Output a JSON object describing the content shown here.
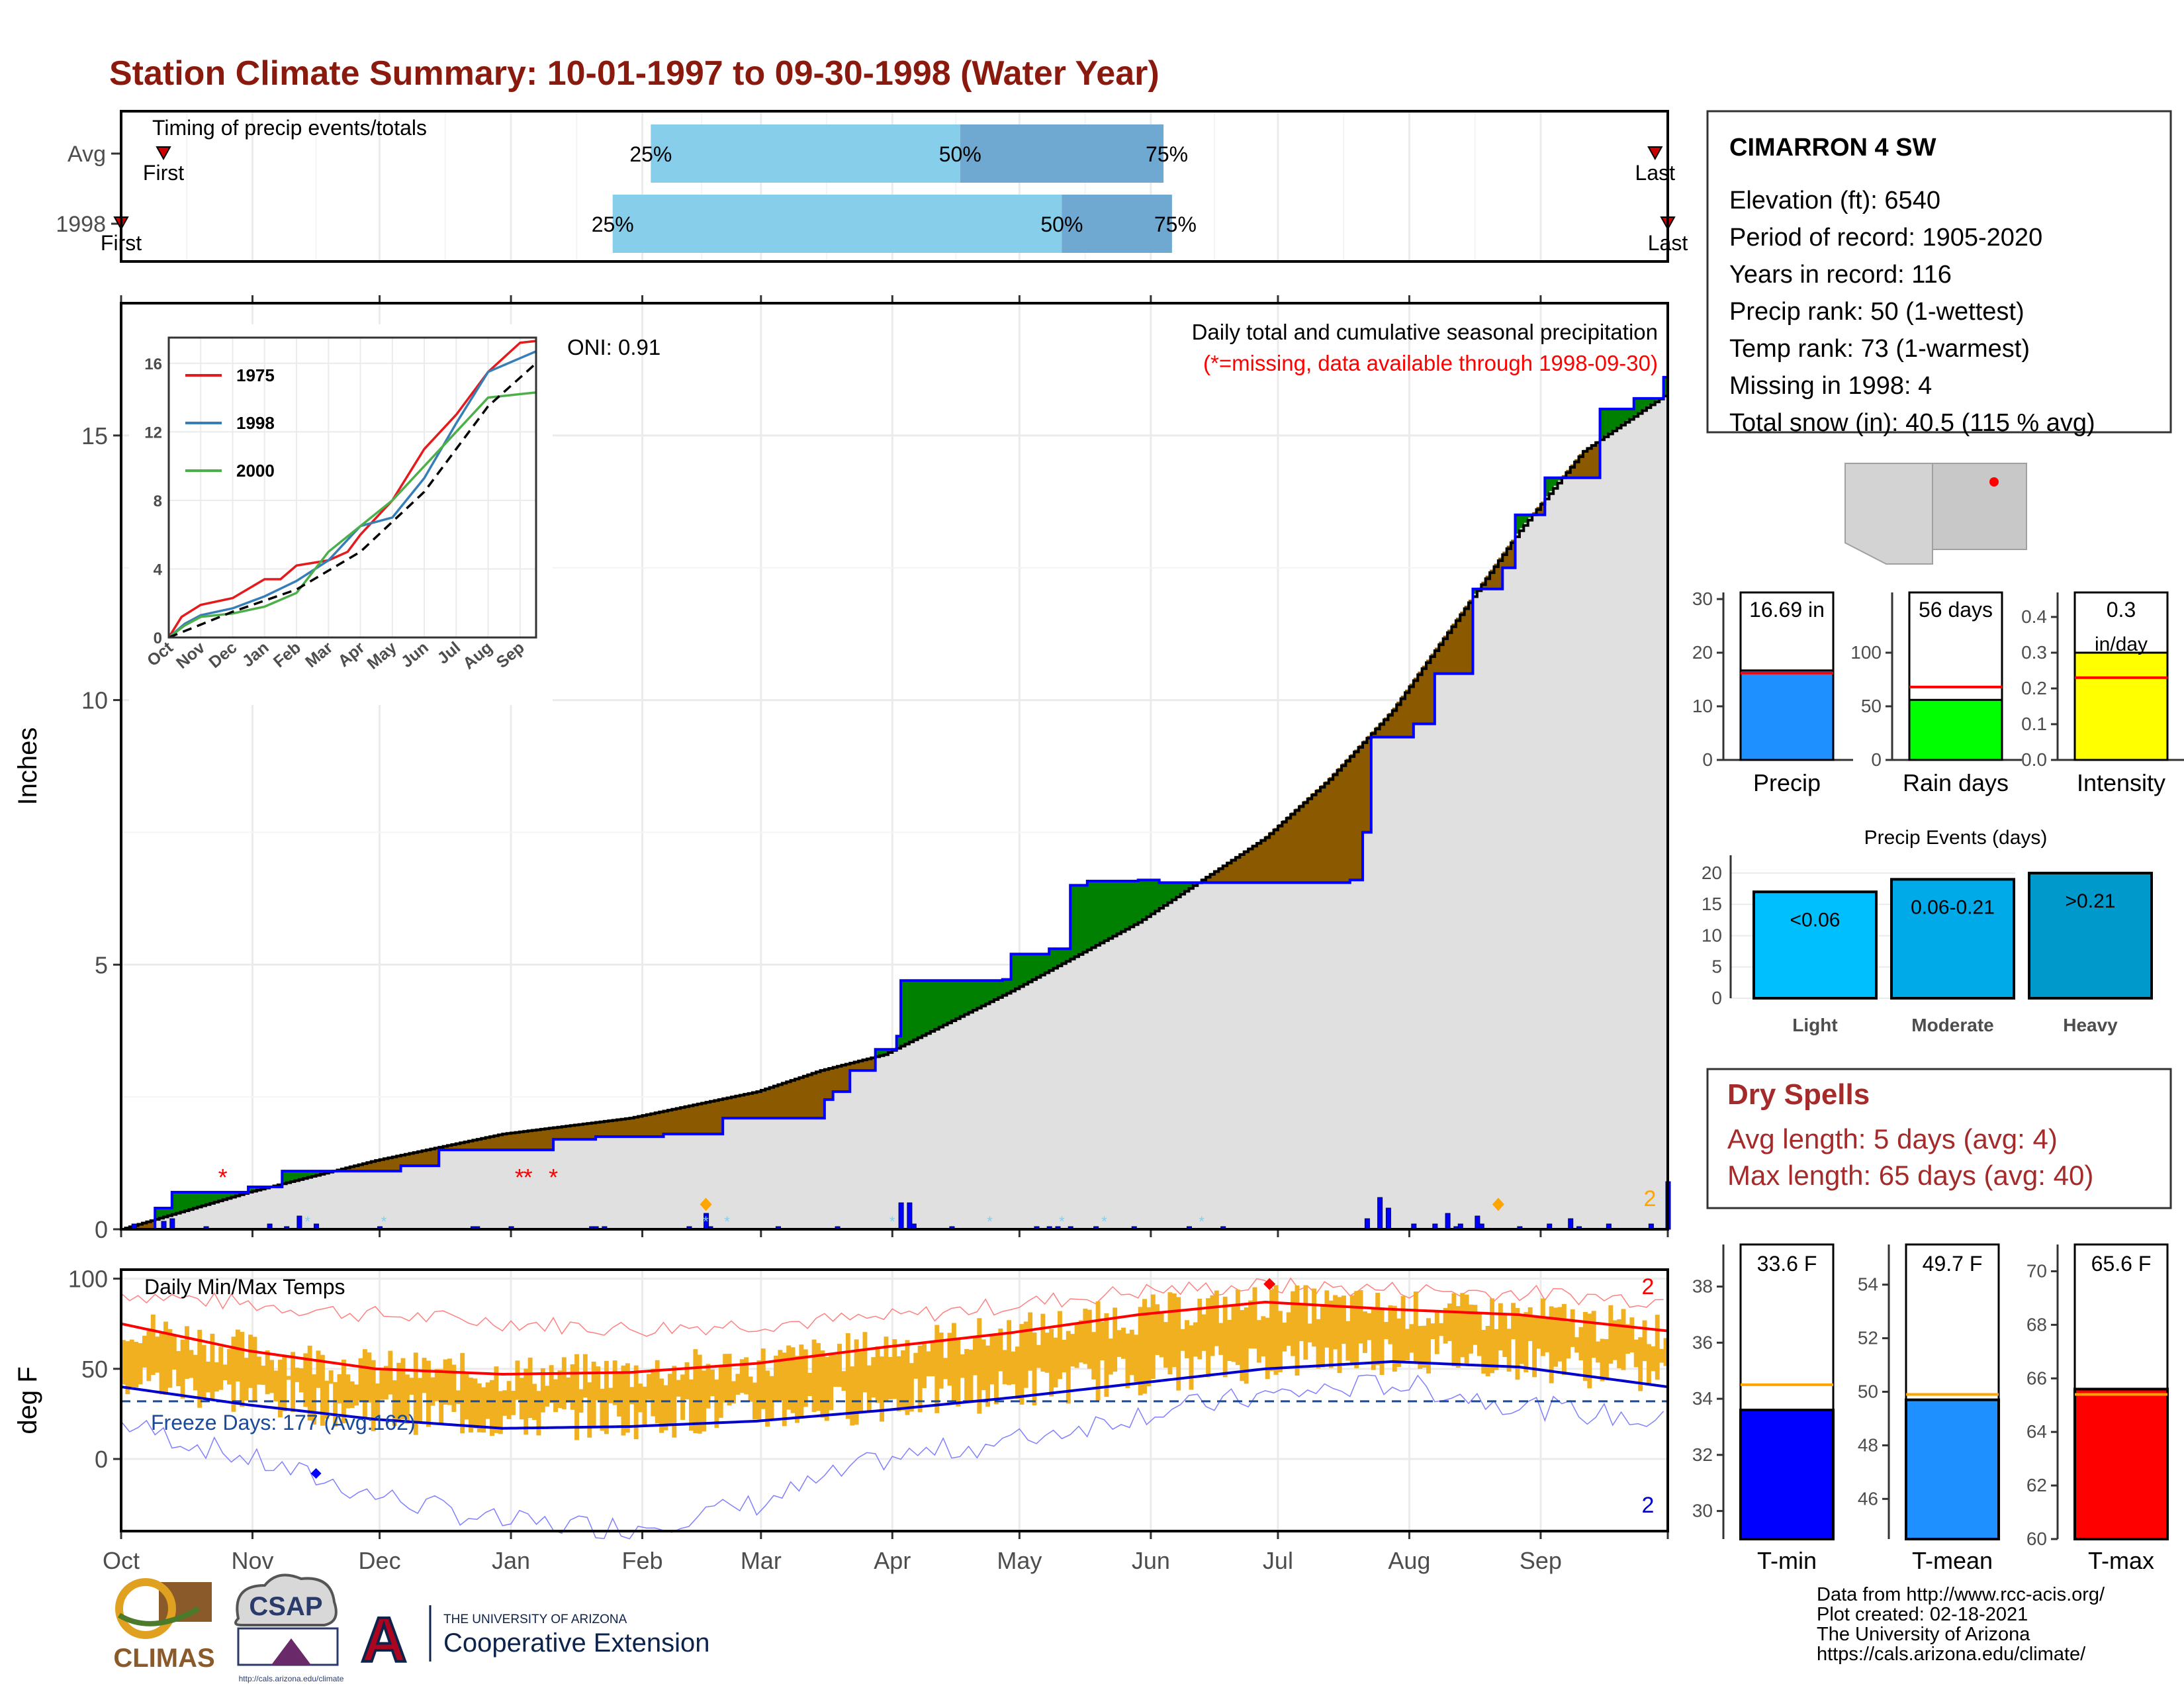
{
  "title": "Station Climate Summary: 10-01-1997 to 09-30-1998 (Water Year)",
  "colors": {
    "title": "#8b1a0e",
    "above_avg": "#008000",
    "below_avg": "#8b5a00",
    "cum_line": "#0000ff",
    "avg_fill": "#e0e0e0",
    "light_blue": "#87ceeb",
    "mid_blue": "#6fa8d0",
    "temp_bar": "#f0b020",
    "tmax_line": "#ff0000",
    "tmin_line": "#0000cc"
  },
  "timing_panel": {
    "label": "Timing of precip events/totals",
    "rows": [
      {
        "name": "Avg",
        "first_label": "First",
        "last_label": "Last",
        "first_doy": 10,
        "last_doy": 362,
        "p25": 125,
        "p50": 198,
        "p75": 246,
        "p25_label": "25%",
        "p50_label": "50%",
        "p75_label": "75%"
      },
      {
        "name": "1998",
        "first_label": "First",
        "last_label": "Last",
        "first_doy": 0,
        "last_doy": 365,
        "p25": 116,
        "p50": 222,
        "p75": 248,
        "p25_label": "25%",
        "p50_label": "50%",
        "p75_label": "75%"
      }
    ]
  },
  "main_panel": {
    "ylabel": "Inches",
    "yticks": [
      0,
      5,
      10,
      15
    ],
    "ymax": 17.5,
    "oni_label": "ONI: 0.91",
    "subtitle": "Daily total and cumulative seasonal precipitation",
    "missing_note": "(*=missing, data available through 1998-09-30)",
    "count_label": "2",
    "missing_days": [
      24,
      94,
      96,
      102
    ],
    "event_markers": [
      138,
      325
    ]
  },
  "inset": {
    "yticks": [
      0,
      4,
      8,
      12,
      16
    ],
    "months": [
      "Oct",
      "Nov",
      "Dec",
      "Jan",
      "Feb",
      "Mar",
      "Apr",
      "May",
      "Jun",
      "Jul",
      "Aug",
      "Sep"
    ],
    "legend": [
      {
        "name": "1975",
        "color": "#e41a1c"
      },
      {
        "name": "1998",
        "color": "#377eb8"
      },
      {
        "name": "2000",
        "color": "#4daf4a"
      }
    ]
  },
  "temp_panel": {
    "title": "Daily Min/Max Temps",
    "ylabel": "deg F",
    "yticks": [
      0,
      50,
      100
    ],
    "freeze_label": "Freeze Days: 177 (Avg:162)",
    "count_max": "2",
    "count_min": "2"
  },
  "x_axis": {
    "months": [
      "Oct",
      "Nov",
      "Dec",
      "Jan",
      "Feb",
      "Mar",
      "Apr",
      "May",
      "Jun",
      "Jul",
      "Aug",
      "Sep"
    ]
  },
  "station": {
    "name": "CIMARRON 4 SW",
    "lines": [
      "Elevation (ft): 6540",
      "Period of record: 1905-2020",
      "Years in record: 116",
      "Precip rank: 50 (1-wettest)",
      "Temp rank: 73 (1-warmest)",
      "Missing in 1998: 4",
      "Total snow (in): 40.5 (115 % avg)"
    ]
  },
  "summary_bars": [
    {
      "name": "Precip",
      "label": "16.69 in",
      "value": 16.69,
      "avg": 16.2,
      "ymax": 30,
      "yticks": [
        0,
        10,
        20,
        30
      ],
      "color": "#1e90ff"
    },
    {
      "name": "Rain days",
      "label": "56 days",
      "value": 56,
      "avg": 68,
      "ymax": 150,
      "yticks": [
        0,
        50,
        100
      ],
      "color": "#00ff00"
    },
    {
      "name": "Intensity",
      "label": "0.3",
      "label2": "in/day",
      "value": 0.3,
      "avg": 0.23,
      "ymax": 0.45,
      "yticks": [
        "0.0",
        "0.1",
        "0.2",
        "0.3",
        "0.4"
      ],
      "color": "#ffff00"
    }
  ],
  "precip_events": {
    "title": "Precip Events (days)",
    "yticks": [
      0,
      5,
      10,
      15,
      20
    ],
    "ymax": 22,
    "bars": [
      {
        "name": "Light",
        "label": "<0.06",
        "value": 17,
        "color": "#00bfff"
      },
      {
        "name": "Moderate",
        "label": "0.06-0.21",
        "value": 19,
        "color": "#00aae8"
      },
      {
        "name": "Heavy",
        "label": ">0.21",
        "value": 20,
        "color": "#0099cc"
      }
    ]
  },
  "dry_spells": {
    "title": "Dry Spells",
    "avg_line": "Avg length: 5 days (avg: 4)",
    "max_line": "Max length: 65 days (avg: 40)"
  },
  "temp_bars": [
    {
      "name": "T-min",
      "label": "33.6 F",
      "value": 33.6,
      "avg": 34.5,
      "ymin": 29,
      "ymax": 39.5,
      "yticks": [
        30,
        32,
        34,
        36,
        38
      ],
      "color": "#0000ff"
    },
    {
      "name": "T-mean",
      "label": "49.7 F",
      "value": 49.7,
      "avg": 49.9,
      "ymin": 44.5,
      "ymax": 55.5,
      "yticks": [
        46,
        48,
        50,
        52,
        54
      ],
      "color": "#1e90ff"
    },
    {
      "name": "T-max",
      "label": "65.6 F",
      "value": 65.6,
      "avg": 65.4,
      "ymin": 60,
      "ymax": 71,
      "yticks": [
        60,
        62,
        64,
        66,
        68,
        70
      ],
      "color": "#ff0000"
    }
  ],
  "footer": {
    "lines": [
      "Data from http://www.rcc-acis.org/",
      "Plot created: 02-18-2021",
      "The University of Arizona",
      "https://cals.arizona.edu/climate/"
    ]
  },
  "logos": {
    "climas": "CLIMAS",
    "csap": "CSAP",
    "csap_url": "http://cals.arizona.edu/climate",
    "ua_top": "THE UNIVERSITY OF ARIZONA",
    "ua_bottom": "Cooperative Extension",
    "ua_letter": "A"
  },
  "chart_data": {
    "type": "area",
    "title": "Station Climate Summary: 10-01-1997 to 09-30-1998 (Water Year)",
    "ylabel": "Inches",
    "ylim": [
      0,
      17.5
    ],
    "x_unit": "day of water year",
    "cum_1998_steps": [
      [
        0,
        0
      ],
      [
        8,
        0.4
      ],
      [
        12,
        0.7
      ],
      [
        30,
        0.8
      ],
      [
        38,
        1.1
      ],
      [
        66,
        1.2
      ],
      [
        75,
        1.5
      ],
      [
        102,
        1.7
      ],
      [
        112,
        1.75
      ],
      [
        128,
        1.8
      ],
      [
        142,
        2.1
      ],
      [
        166,
        2.45
      ],
      [
        168,
        2.6
      ],
      [
        172,
        3.0
      ],
      [
        178,
        3.4
      ],
      [
        183,
        3.65
      ],
      [
        184,
        4.7
      ],
      [
        208,
        4.72
      ],
      [
        210,
        5.2
      ],
      [
        219,
        5.3
      ],
      [
        224,
        6.5
      ],
      [
        228,
        6.58
      ],
      [
        240,
        6.6
      ],
      [
        245,
        6.55
      ],
      [
        290,
        6.6
      ],
      [
        293,
        7.5
      ],
      [
        295,
        9.3
      ],
      [
        305,
        9.55
      ],
      [
        310,
        10.5
      ],
      [
        319,
        12.1
      ],
      [
        326,
        12.5
      ],
      [
        329,
        13.5
      ],
      [
        336,
        14.2
      ],
      [
        349,
        15.5
      ],
      [
        357,
        15.7
      ],
      [
        364,
        16.1
      ],
      [
        365,
        16.69
      ]
    ],
    "avg_cum": [
      [
        0,
        0
      ],
      [
        30,
        0.7
      ],
      [
        60,
        1.3
      ],
      [
        90,
        1.8
      ],
      [
        120,
        2.1
      ],
      [
        150,
        2.6
      ],
      [
        165,
        3.0
      ],
      [
        180,
        3.3
      ],
      [
        210,
        4.5
      ],
      [
        240,
        5.8
      ],
      [
        270,
        7.4
      ],
      [
        285,
        8.5
      ],
      [
        300,
        9.8
      ],
      [
        315,
        11.5
      ],
      [
        330,
        13.2
      ],
      [
        345,
        14.7
      ],
      [
        365,
        15.8
      ]
    ],
    "daily_bars": [
      [
        3,
        0.1
      ],
      [
        10,
        0.15
      ],
      [
        12,
        0.2
      ],
      [
        20,
        0.05
      ],
      [
        35,
        0.1
      ],
      [
        39,
        0.05
      ],
      [
        42,
        0.25
      ],
      [
        46,
        0.1
      ],
      [
        61,
        0.05
      ],
      [
        83,
        0.05
      ],
      [
        84,
        0.05
      ],
      [
        92,
        0.05
      ],
      [
        111,
        0.05
      ],
      [
        112,
        0.05
      ],
      [
        114,
        0.05
      ],
      [
        134,
        0.05
      ],
      [
        139,
        0.05
      ],
      [
        138,
        0.3
      ],
      [
        155,
        0.05
      ],
      [
        169,
        0.05
      ],
      [
        184,
        0.5
      ],
      [
        186,
        0.5
      ],
      [
        187,
        0.1
      ],
      [
        196,
        0.05
      ],
      [
        216,
        0.05
      ],
      [
        219,
        0.05
      ],
      [
        221,
        0.05
      ],
      [
        224,
        0.05
      ],
      [
        230,
        0.05
      ],
      [
        239,
        0.05
      ],
      [
        252,
        0.05
      ],
      [
        260,
        0.05
      ],
      [
        294,
        0.2
      ],
      [
        297,
        0.6
      ],
      [
        299,
        0.4
      ],
      [
        305,
        0.1
      ],
      [
        310,
        0.1
      ],
      [
        313,
        0.3
      ],
      [
        315,
        0.05
      ],
      [
        316,
        0.1
      ],
      [
        320,
        0.25
      ],
      [
        321,
        0.1
      ],
      [
        330,
        0.05
      ],
      [
        337,
        0.1
      ],
      [
        342,
        0.2
      ],
      [
        344,
        0.05
      ],
      [
        351,
        0.1
      ],
      [
        361,
        0.1
      ],
      [
        365,
        0.9
      ]
    ],
    "inset_series": [
      {
        "name": "1975",
        "points": [
          [
            0,
            0
          ],
          [
            0.4,
            1.2
          ],
          [
            1,
            1.9
          ],
          [
            2,
            2.3
          ],
          [
            3,
            3.4
          ],
          [
            3.5,
            3.4
          ],
          [
            4,
            4.2
          ],
          [
            5,
            4.5
          ],
          [
            5.6,
            5.0
          ],
          [
            6,
            6.0
          ],
          [
            7,
            8.0
          ],
          [
            8,
            11.0
          ],
          [
            9,
            13.0
          ],
          [
            10,
            15.5
          ],
          [
            11,
            17.2
          ],
          [
            11.5,
            17.3
          ]
        ]
      },
      {
        "name": "1998",
        "points": [
          [
            0,
            0
          ],
          [
            0.5,
            0.8
          ],
          [
            1,
            1.3
          ],
          [
            2,
            1.7
          ],
          [
            3,
            2.4
          ],
          [
            4,
            3.3
          ],
          [
            5,
            4.5
          ],
          [
            6,
            6.5
          ],
          [
            7,
            7.0
          ],
          [
            8,
            9.3
          ],
          [
            9,
            12.5
          ],
          [
            10,
            15.5
          ],
          [
            11,
            16.3
          ],
          [
            11.5,
            16.7
          ]
        ]
      },
      {
        "name": "2000",
        "points": [
          [
            0,
            0
          ],
          [
            0.5,
            0.7
          ],
          [
            1,
            1.2
          ],
          [
            2,
            1.4
          ],
          [
            3,
            1.8
          ],
          [
            4,
            2.6
          ],
          [
            5,
            5.0
          ],
          [
            6,
            6.5
          ],
          [
            7,
            8.0
          ],
          [
            8,
            10.0
          ],
          [
            9,
            12.0
          ],
          [
            10,
            14.0
          ],
          [
            11,
            14.2
          ],
          [
            11.5,
            14.3
          ]
        ]
      }
    ],
    "inset_avg": [
      [
        0,
        0
      ],
      [
        2,
        1.5
      ],
      [
        4,
        2.8
      ],
      [
        6,
        5.0
      ],
      [
        8,
        8.5
      ],
      [
        10,
        13.5
      ],
      [
        11.5,
        16.0
      ]
    ],
    "temp_tmax_avg": [
      [
        0,
        75
      ],
      [
        30,
        60
      ],
      [
        60,
        50
      ],
      [
        90,
        47
      ],
      [
        120,
        48
      ],
      [
        150,
        53
      ],
      [
        180,
        62
      ],
      [
        210,
        70
      ],
      [
        240,
        80
      ],
      [
        270,
        87
      ],
      [
        300,
        83
      ],
      [
        330,
        80
      ],
      [
        365,
        71
      ]
    ],
    "temp_tmin_avg": [
      [
        0,
        40
      ],
      [
        30,
        30
      ],
      [
        60,
        22
      ],
      [
        90,
        17
      ],
      [
        120,
        18
      ],
      [
        150,
        21
      ],
      [
        180,
        27
      ],
      [
        210,
        34
      ],
      [
        240,
        42
      ],
      [
        270,
        50
      ],
      [
        300,
        54
      ],
      [
        330,
        51
      ],
      [
        365,
        40
      ]
    ],
    "temp_tmax_record": [
      [
        0,
        92
      ],
      [
        60,
        80
      ],
      [
        120,
        72
      ],
      [
        180,
        78
      ],
      [
        240,
        93
      ],
      [
        270,
        96
      ],
      [
        330,
        92
      ],
      [
        365,
        88
      ]
    ],
    "temp_tmin_record": [
      [
        0,
        20
      ],
      [
        30,
        0
      ],
      [
        60,
        -20
      ],
      [
        90,
        -35
      ],
      [
        120,
        -38
      ],
      [
        150,
        -25
      ],
      [
        180,
        0
      ],
      [
        210,
        10
      ],
      [
        240,
        25
      ],
      [
        270,
        35
      ],
      [
        300,
        42
      ],
      [
        330,
        30
      ],
      [
        365,
        20
      ]
    ],
    "freeze_threshold": 32
  }
}
